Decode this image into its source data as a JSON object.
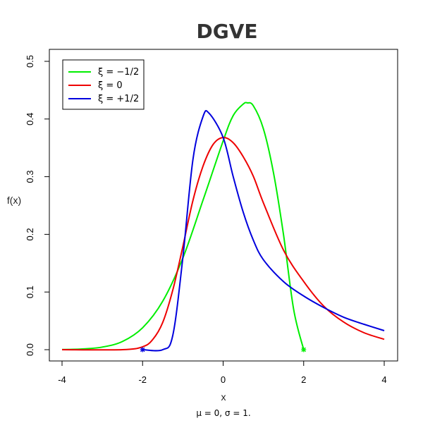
{
  "chart_data": {
    "type": "line",
    "title": "DGVE",
    "xlabel": "x",
    "ylabel": "f(x)",
    "subtitle": "μ = 0, σ = 1.",
    "xlim": [
      -4,
      4
    ],
    "ylim": [
      0,
      0.5
    ],
    "x_ticks": [
      "-4",
      "-2",
      "0",
      "2",
      "4"
    ],
    "y_ticks": [
      "0.0",
      "0.1",
      "0.2",
      "0.3",
      "0.4",
      "0.5"
    ],
    "grid": false,
    "legend_position": "top-left",
    "series": [
      {
        "name": "ξ = −1/2",
        "color": "#00ee00",
        "x": [
          -4,
          -3.5,
          -3,
          -2.5,
          -2,
          -1.5,
          -1,
          -0.5,
          0,
          0.25,
          0.5,
          0.6,
          0.75,
          1,
          1.25,
          1.5,
          1.75,
          2
        ],
        "y": [
          0.0002,
          0.0012,
          0.0045,
          0.0142,
          0.038,
          0.084,
          0.159,
          0.259,
          0.362,
          0.406,
          0.426,
          0.428,
          0.423,
          0.383,
          0.307,
          0.199,
          0.07,
          0.0
        ],
        "endpoint_marker": {
          "x": 2,
          "y": 0
        }
      },
      {
        "name": "ξ = 0",
        "color": "#ee0000",
        "x": [
          -4,
          -2.5,
          -2,
          -1.75,
          -1.5,
          -1.25,
          -1,
          -0.75,
          -0.5,
          -0.25,
          0,
          0.25,
          0.5,
          0.75,
          1,
          1.5,
          2,
          2.5,
          3,
          3.5,
          4
        ],
        "y": [
          0.0,
          0.0,
          0.005,
          0.0174,
          0.0472,
          0.1034,
          0.179,
          0.2588,
          0.3181,
          0.3557,
          0.3679,
          0.3588,
          0.3344,
          0.3007,
          0.2546,
          0.1725,
          0.1182,
          0.0754,
          0.0475,
          0.0294,
          0.018
        ]
      },
      {
        "name": "ξ = +1/2",
        "color": "#0000dd",
        "x": [
          -2,
          -1.5,
          -1.25,
          -1,
          -0.75,
          -0.5,
          -0.35,
          0,
          0.25,
          0.5,
          0.75,
          1,
          1.5,
          2,
          2.5,
          3,
          3.5,
          4
        ],
        "y": [
          0.0,
          0.0,
          0.025,
          0.16,
          0.33,
          0.404,
          0.41,
          0.368,
          0.3,
          0.238,
          0.19,
          0.156,
          0.118,
          0.093,
          0.073,
          0.056,
          0.044,
          0.033
        ],
        "endpoint_marker": {
          "x": -2,
          "y": 0
        }
      }
    ]
  }
}
